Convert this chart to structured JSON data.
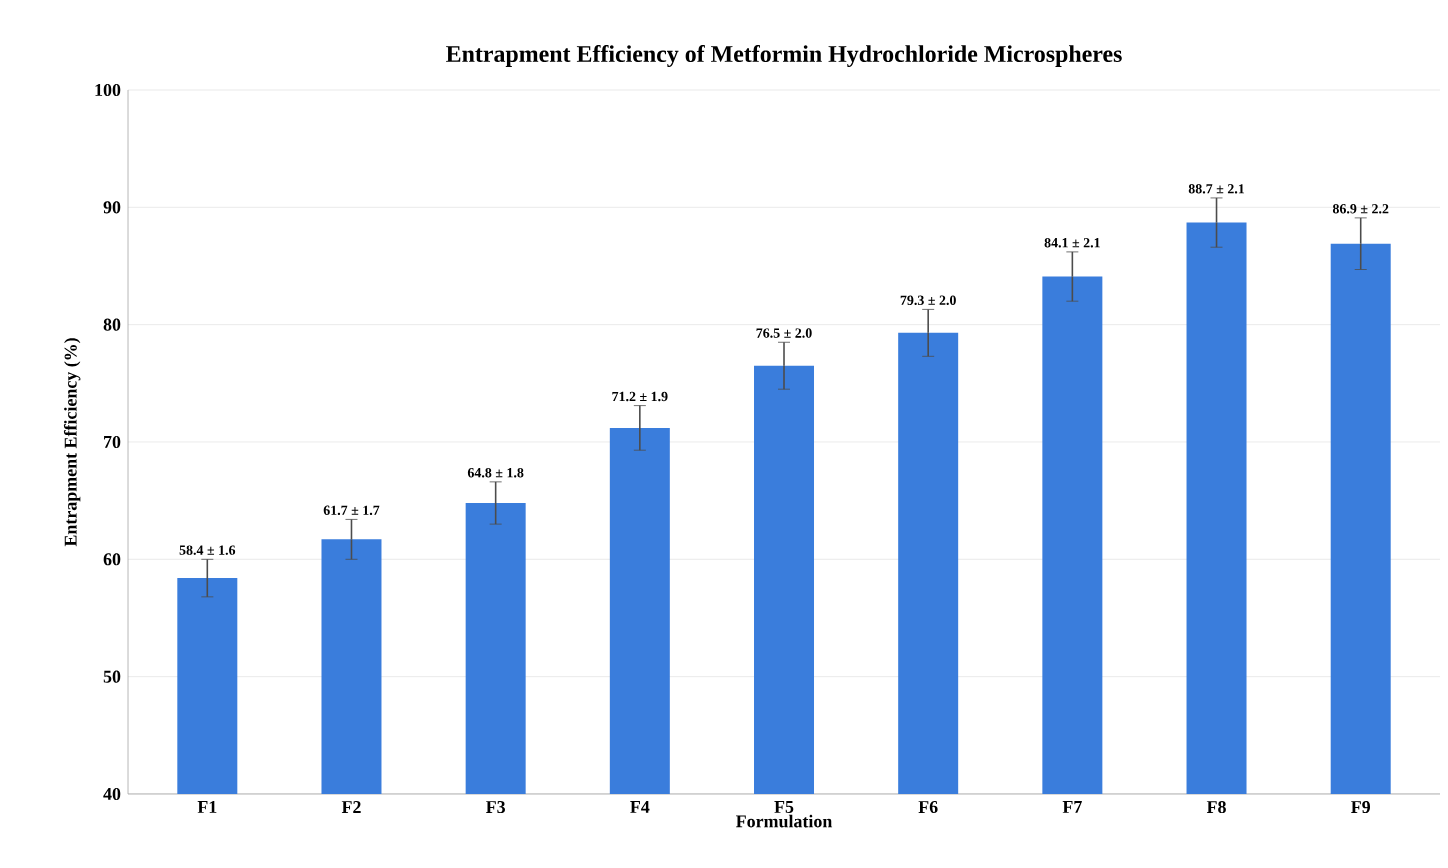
{
  "chart_data": {
    "type": "bar",
    "title": "Entrapment Efficiency of Metformin Hydrochloride Microspheres",
    "xlabel": "Formulation",
    "ylabel": "Entrapment Efficiency (%)",
    "categories": [
      "F1",
      "F2",
      "F3",
      "F4",
      "F5",
      "F6",
      "F7",
      "F8",
      "F9"
    ],
    "values": [
      58.4,
      61.7,
      64.8,
      71.2,
      76.5,
      79.3,
      84.1,
      88.7,
      86.9
    ],
    "errors": [
      1.6,
      1.7,
      1.8,
      1.9,
      2.0,
      2.0,
      2.1,
      2.1,
      2.2
    ],
    "value_labels": [
      "58.4 ± 1.6",
      "61.7 ± 1.7",
      "64.8 ± 1.8",
      "71.2 ± 1.9",
      "76.5 ± 2.0",
      "79.3 ± 2.0",
      "84.1 ± 2.1",
      "88.7 ± 2.1",
      "86.9 ± 2.2"
    ],
    "color": "#3a7ddc",
    "ylim": [
      40,
      100
    ],
    "yticks": [
      40,
      50,
      60,
      70,
      80,
      90,
      100
    ],
    "grid": "y"
  }
}
